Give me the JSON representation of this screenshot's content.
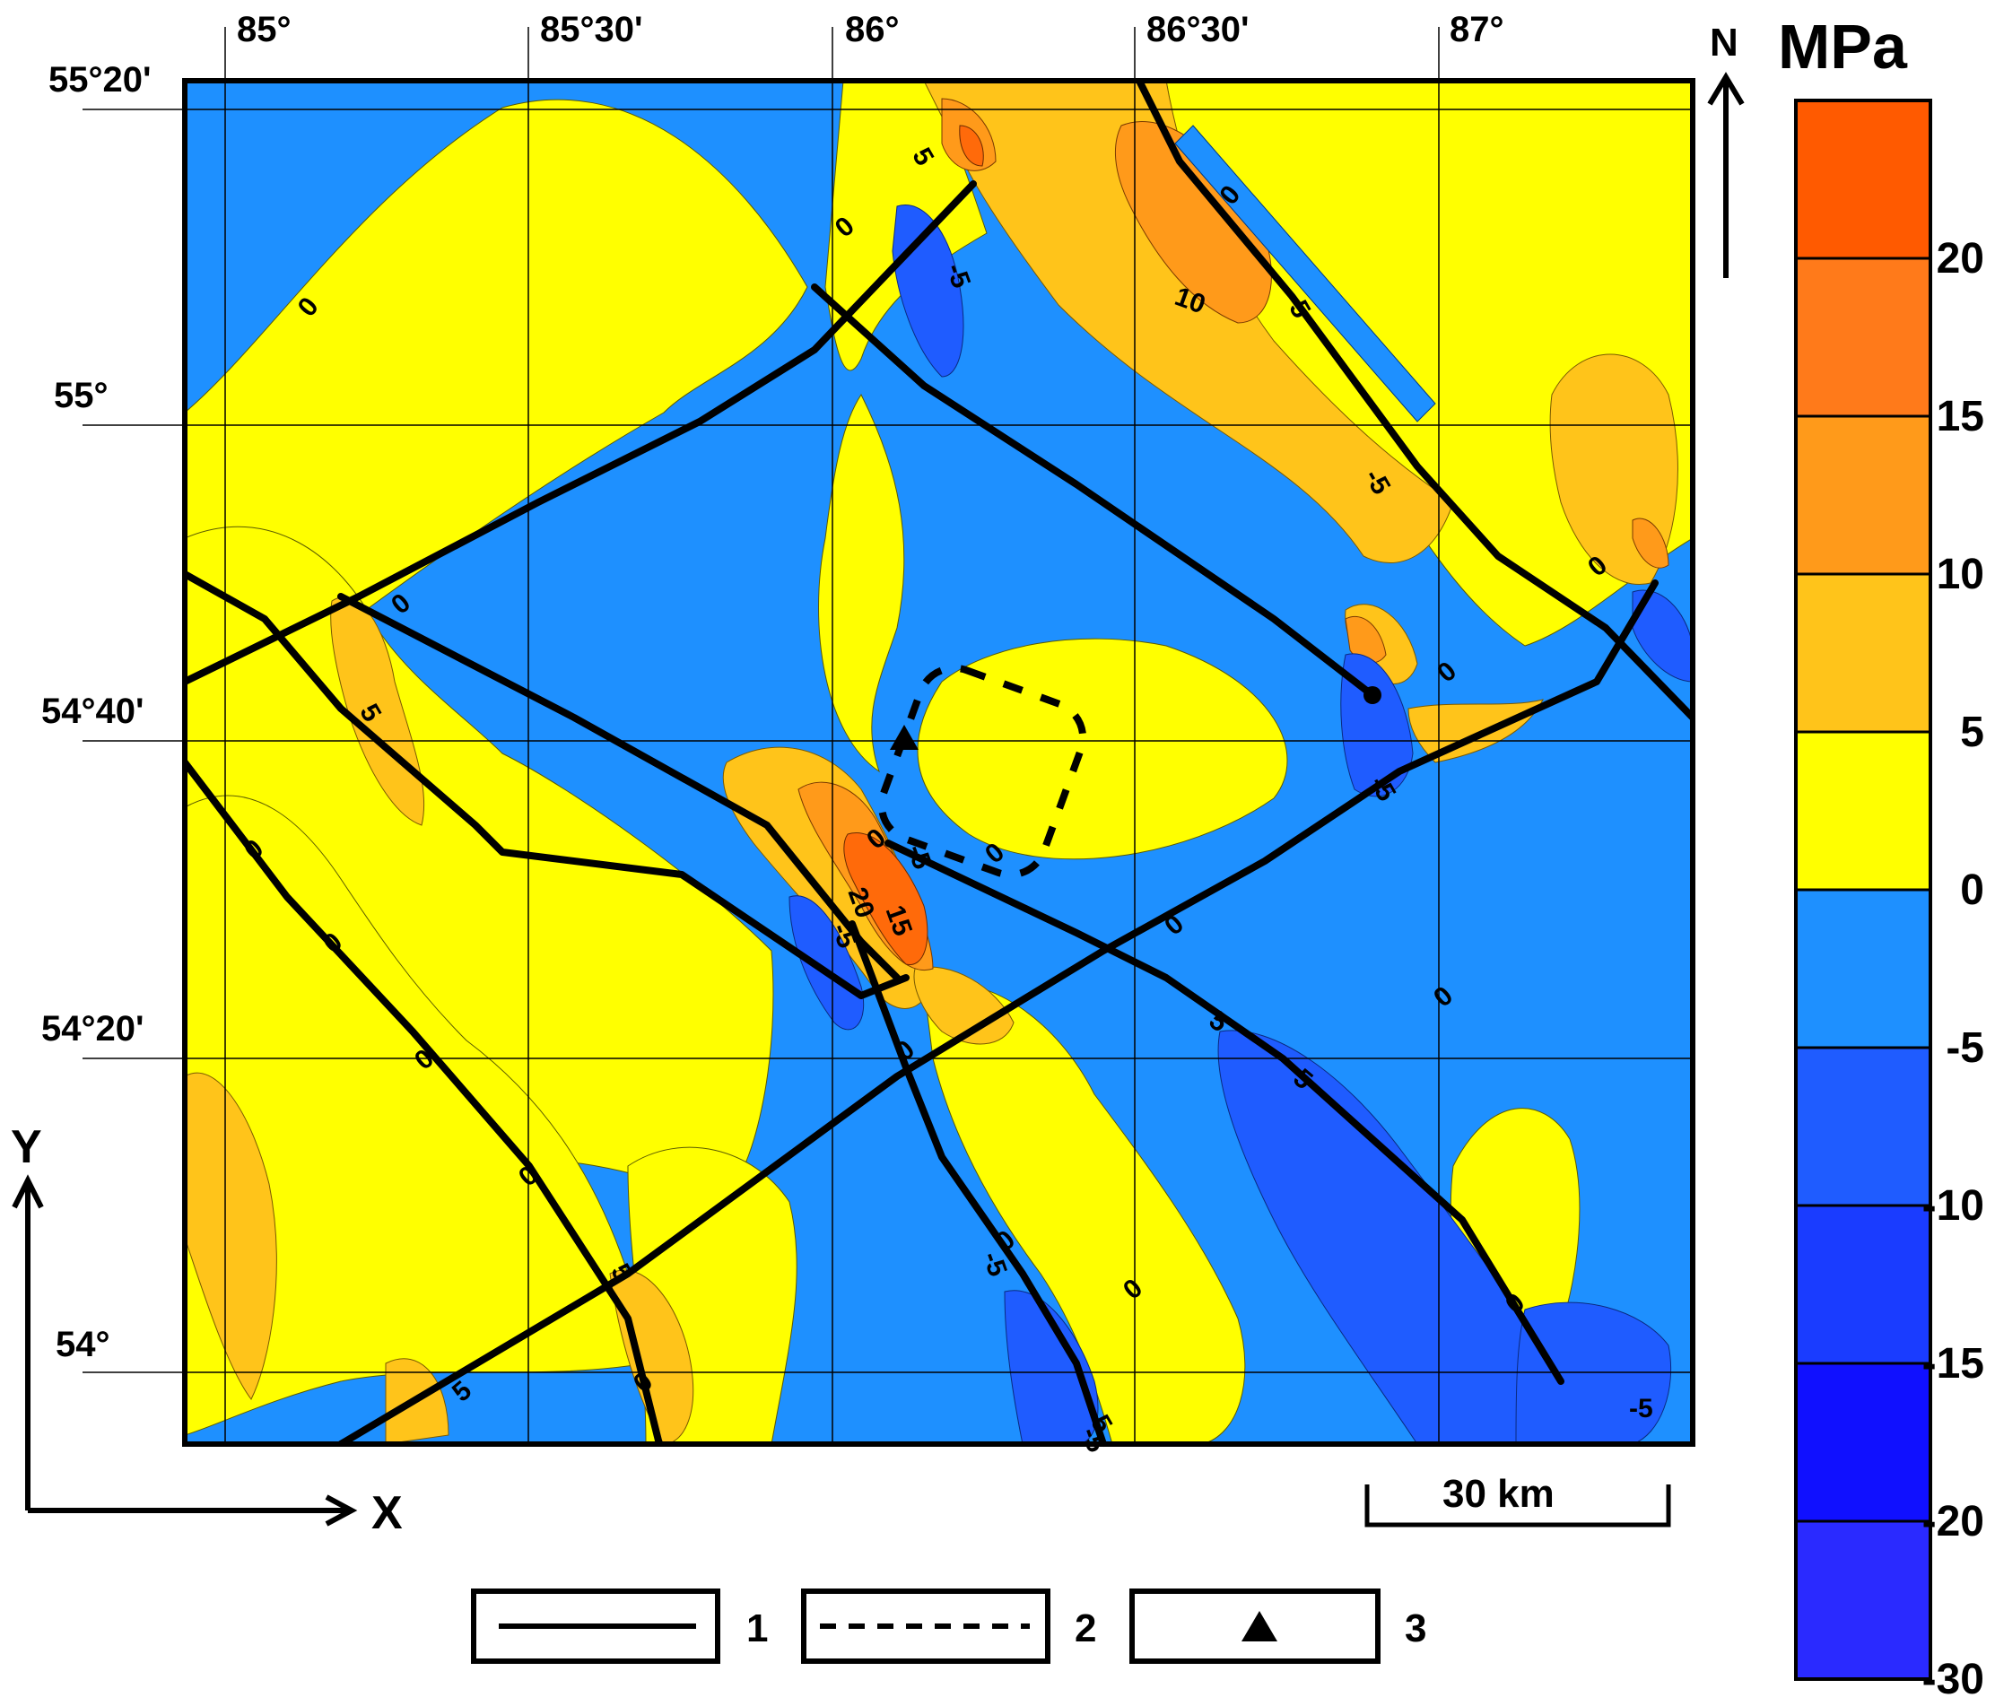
{
  "map": {
    "lon_labels": [
      "85°",
      "85°30'",
      "86°",
      "86°30'",
      "87°"
    ],
    "lat_labels": [
      "55°20'",
      "55°",
      "54°40'",
      "54°20'",
      "54°"
    ],
    "contour_labels": [
      "5",
      "0",
      "-5",
      "10",
      "5",
      "0",
      "0",
      "-5",
      "0",
      "0",
      "0",
      "5",
      "0",
      "0",
      "-5",
      "0",
      "0",
      "15",
      "20",
      "-5",
      "0",
      "0",
      "-5",
      "5",
      "5",
      "0",
      "-5",
      "0",
      "0",
      "-5",
      "5",
      "-5",
      "5",
      "0",
      "-5",
      "0",
      "0",
      "0"
    ]
  },
  "axes": {
    "y_label": "Y",
    "x_label": "X"
  },
  "north_arrow": {
    "label": "N"
  },
  "scale_bar": {
    "label": "30 km"
  },
  "colorbar": {
    "unit": "MPa",
    "tick_labels": [
      "20",
      "15",
      "10",
      "5",
      "0",
      "-5",
      "-10",
      "-15",
      "-20",
      "-30"
    ],
    "colors": [
      "#ff5a00",
      "#ff7a1a",
      "#ff9a1a",
      "#ffc41a",
      "#ffff00",
      "#1e90ff",
      "#1f5cff",
      "#1a3cff",
      "#1010ff",
      "#2a2aff"
    ]
  },
  "legend": {
    "items": [
      {
        "symbol": "solid-line",
        "number": "1"
      },
      {
        "symbol": "dashed-line",
        "number": "2"
      },
      {
        "symbol": "triangle",
        "number": "3"
      }
    ]
  }
}
